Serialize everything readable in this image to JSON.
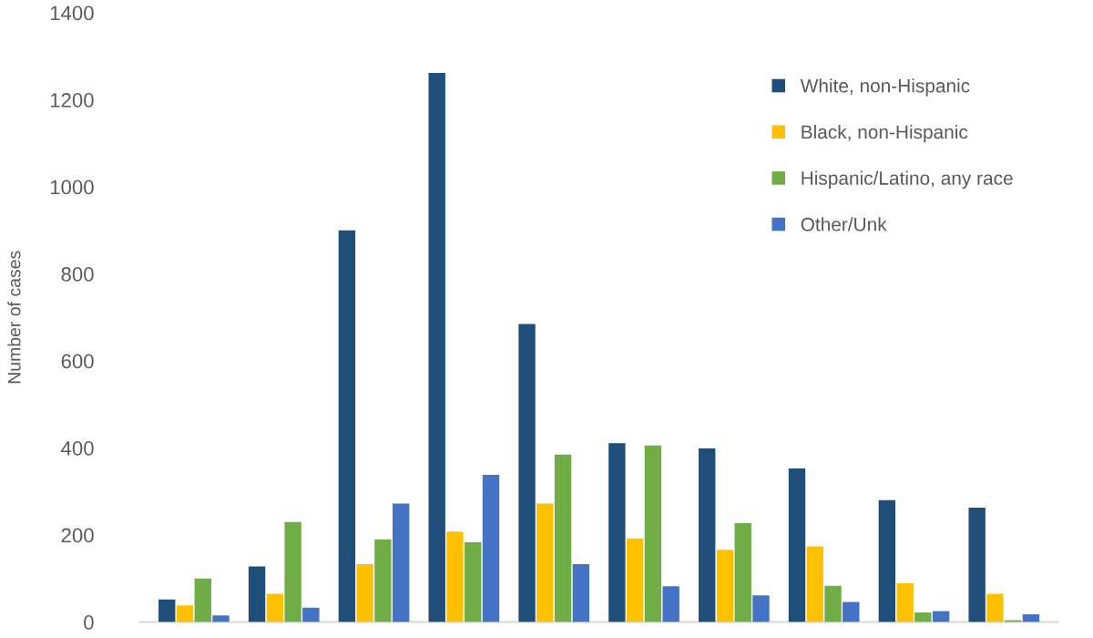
{
  "chart_data": {
    "type": "bar",
    "ylabel": "Number of cases",
    "categories": [
      null,
      null,
      null,
      null,
      null,
      null,
      null,
      null,
      null,
      null
    ],
    "series": [
      {
        "name": "White, non-Hispanic",
        "color": "#1f4e79",
        "values": [
          52,
          128,
          900,
          1262,
          685,
          411,
          399,
          353,
          280,
          263
        ]
      },
      {
        "name": "Black, non-Hispanic",
        "color": "#ffc000",
        "values": [
          38,
          65,
          133,
          208,
          272,
          192,
          166,
          174,
          89,
          65
        ]
      },
      {
        "name": "Hispanic/Latino, any race",
        "color": "#70ad47",
        "values": [
          100,
          230,
          190,
          183,
          385,
          406,
          227,
          83,
          22,
          4
        ]
      },
      {
        "name": "Other/Unk",
        "color": "#4472c4",
        "values": [
          15,
          33,
          272,
          338,
          133,
          82,
          61,
          46,
          25,
          18
        ]
      }
    ],
    "ylim": [
      0,
      1400
    ],
    "yticks": [
      0,
      200,
      400,
      600,
      800,
      1000,
      1200,
      1400
    ],
    "grid": false,
    "legend": "top right",
    "tick_labels": "y"
  }
}
